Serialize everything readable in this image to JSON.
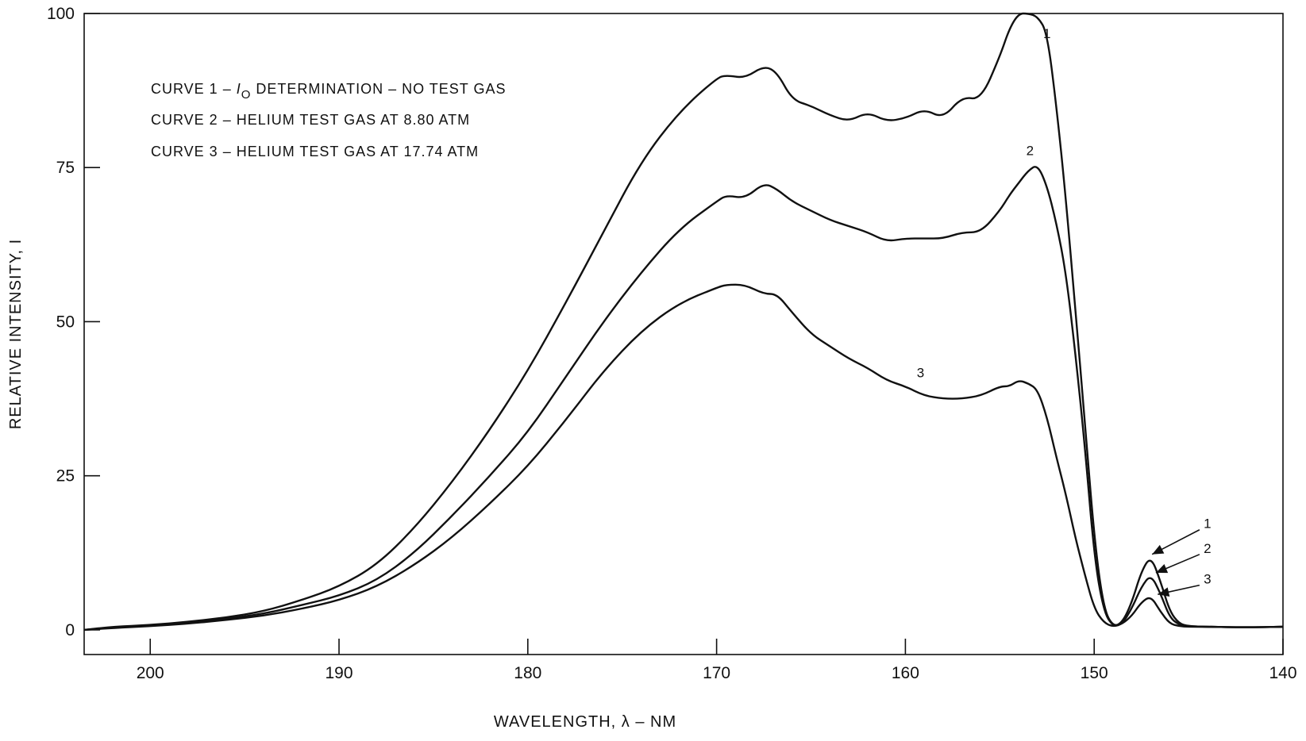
{
  "chart_data": {
    "type": "line",
    "xlabel": "WAVELENGTH, λ – NM",
    "ylabel": "RELATIVE INTENSITY, I",
    "xlim": [
      203.5,
      140
    ],
    "ylim": [
      -4,
      100
    ],
    "x_reversed": true,
    "grid": false,
    "legend_position": "top-left",
    "x_ticks": [
      200,
      190,
      180,
      170,
      160,
      150,
      140
    ],
    "y_ticks": [
      0,
      25,
      50,
      75,
      100
    ],
    "legend_lines": [
      {
        "prefix": "CURVE  1 – ",
        "symbol": "I",
        "subscript": "O",
        "text": " DETERMINATION – NO TEST GAS"
      },
      {
        "prefix": "CURVE  2 – ",
        "symbol": "",
        "subscript": "",
        "text": "HELIUM TEST GAS AT 8.80 ATM"
      },
      {
        "prefix": "CURVE  3 – ",
        "symbol": "",
        "subscript": "",
        "text": "HELIUM TEST GAS AT 17.74 ATM"
      }
    ],
    "curve_labels": [
      {
        "text": "1",
        "x": 152.5,
        "y": 96
      },
      {
        "text": "2",
        "x": 153.4,
        "y": 77
      },
      {
        "text": "3",
        "x": 159.2,
        "y": 41
      },
      {
        "text": "1",
        "x": 144.0,
        "y": 16.5
      },
      {
        "text": "2",
        "x": 144.0,
        "y": 12.5
      },
      {
        "text": "3",
        "x": 144.0,
        "y": 7.5
      }
    ],
    "series": [
      {
        "name": "1",
        "x": [
          203.5,
          202,
          200,
          198,
          196,
          194,
          192,
          190,
          188,
          186,
          184,
          182,
          180,
          178,
          176,
          174,
          172,
          170,
          169.5,
          168.5,
          167.5,
          166.8,
          166,
          165,
          164,
          163,
          162,
          161,
          160,
          159,
          158,
          157,
          156,
          155,
          154.5,
          154,
          153.5,
          153,
          152.5,
          152,
          151.5,
          151,
          150.5,
          150,
          149.5,
          149,
          148.5,
          148,
          147.5,
          147,
          146.5,
          146,
          145.5,
          145,
          144,
          142,
          140
        ],
        "y": [
          0,
          0.5,
          0.8,
          1.3,
          2.0,
          3.0,
          4.8,
          7.0,
          10.5,
          16.5,
          24.0,
          32.5,
          42.0,
          53.0,
          64.5,
          76.0,
          84.0,
          89.5,
          90.0,
          89.5,
          91.5,
          90.5,
          86.0,
          85.0,
          83.5,
          82.5,
          84.0,
          82.5,
          83.0,
          84.5,
          83.0,
          86.5,
          86.0,
          93.0,
          97.5,
          100,
          100,
          99.5,
          97.0,
          85.0,
          70.0,
          52.0,
          34.0,
          15.0,
          3.5,
          0.5,
          1.2,
          4.5,
          9.5,
          12.0,
          8.0,
          3.0,
          1.0,
          0.6,
          0.5,
          0.4,
          0.5
        ]
      },
      {
        "name": "2",
        "x": [
          203.5,
          202,
          200,
          198,
          196,
          194,
          192,
          190,
          188,
          186,
          184,
          182,
          180,
          178,
          176,
          174,
          172,
          170,
          169.5,
          168.5,
          167.5,
          166.8,
          166,
          165,
          164,
          163,
          162,
          161,
          160,
          159,
          158,
          157,
          156,
          155,
          154.5,
          154,
          153.5,
          153,
          152.5,
          152,
          151.5,
          151,
          150.5,
          150,
          149.5,
          149,
          148.5,
          148,
          147.5,
          147,
          146.5,
          146,
          145.5,
          145,
          144,
          142,
          140
        ],
        "y": [
          0,
          0.4,
          0.7,
          1.1,
          1.8,
          2.6,
          4.0,
          5.5,
          8.0,
          12.5,
          18.5,
          25.0,
          32.0,
          41.0,
          50.0,
          58.0,
          65.0,
          69.5,
          70.5,
          70.0,
          72.5,
          71.5,
          69.5,
          68.0,
          66.5,
          65.5,
          64.5,
          63.0,
          63.5,
          63.5,
          63.5,
          64.5,
          64.5,
          68.0,
          70.5,
          72.5,
          74.5,
          75.5,
          72.0,
          66.0,
          58.0,
          45.0,
          30.0,
          12.0,
          3.0,
          0.5,
          1.0,
          3.5,
          7.0,
          9.0,
          6.0,
          2.0,
          0.8,
          0.6,
          0.5,
          0.4,
          0.5
        ]
      },
      {
        "name": "3",
        "x": [
          203.5,
          202,
          200,
          198,
          196,
          194,
          192,
          190,
          188,
          186,
          184,
          182,
          180,
          178,
          176,
          174,
          172,
          170,
          169.5,
          168.5,
          167.5,
          166.8,
          166,
          165,
          164,
          163,
          162,
          161,
          160,
          159,
          158,
          157,
          156,
          155,
          154.5,
          154,
          153.5,
          153,
          152.5,
          152,
          151.5,
          151,
          150.5,
          150,
          149.5,
          149,
          148.5,
          148,
          147.5,
          147,
          146.5,
          146,
          145.5,
          145,
          144,
          142,
          140
        ],
        "y": [
          0,
          0.3,
          0.6,
          1.0,
          1.6,
          2.3,
          3.4,
          4.8,
          7.0,
          10.5,
          15.0,
          20.5,
          26.5,
          34.0,
          42.0,
          48.5,
          53.0,
          55.5,
          56.0,
          56.0,
          54.5,
          54.5,
          51.5,
          48.0,
          46.0,
          44.0,
          42.5,
          40.5,
          39.5,
          38.0,
          37.5,
          37.5,
          38.0,
          39.5,
          39.5,
          40.5,
          40.0,
          39.0,
          34.5,
          28.0,
          22.0,
          15.0,
          9.0,
          3.5,
          1.2,
          0.5,
          1.0,
          2.3,
          4.5,
          5.5,
          3.0,
          1.0,
          0.6,
          0.5,
          0.5,
          0.4,
          0.5
        ]
      }
    ]
  }
}
